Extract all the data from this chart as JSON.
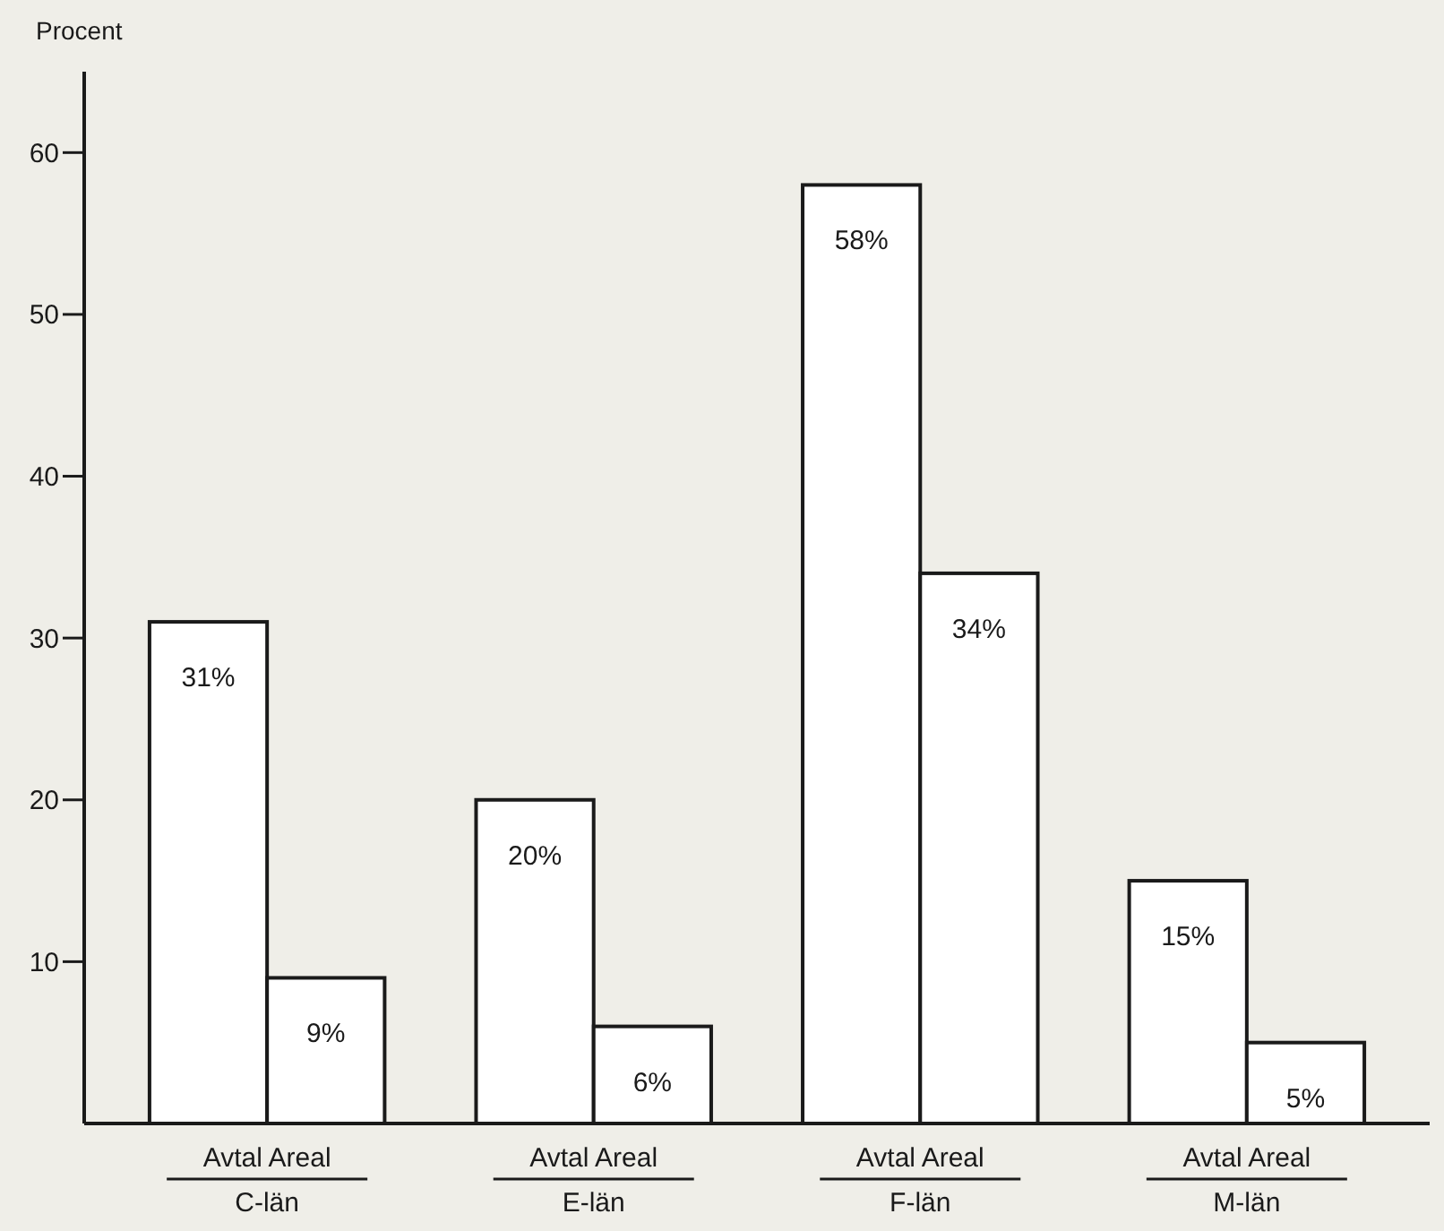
{
  "chart_data": {
    "type": "bar",
    "ylabel": "Procent",
    "categories": [
      "C-län",
      "E-län",
      "F-län",
      "M-län"
    ],
    "series": [
      {
        "name": "Avtal",
        "color": "#ffffff",
        "values": [
          31,
          20,
          58,
          15
        ],
        "value_labels": [
          "31%",
          "20%",
          "58%",
          "15%"
        ]
      },
      {
        "name": "Areal",
        "color": "#ffffff",
        "values": [
          9,
          6,
          34,
          5
        ],
        "value_labels": [
          "9%",
          "6%",
          "34%",
          "5%"
        ]
      }
    ],
    "ylim": [
      0,
      65
    ],
    "yticks": [
      10,
      20,
      30,
      40,
      50,
      60
    ],
    "grid": false
  }
}
